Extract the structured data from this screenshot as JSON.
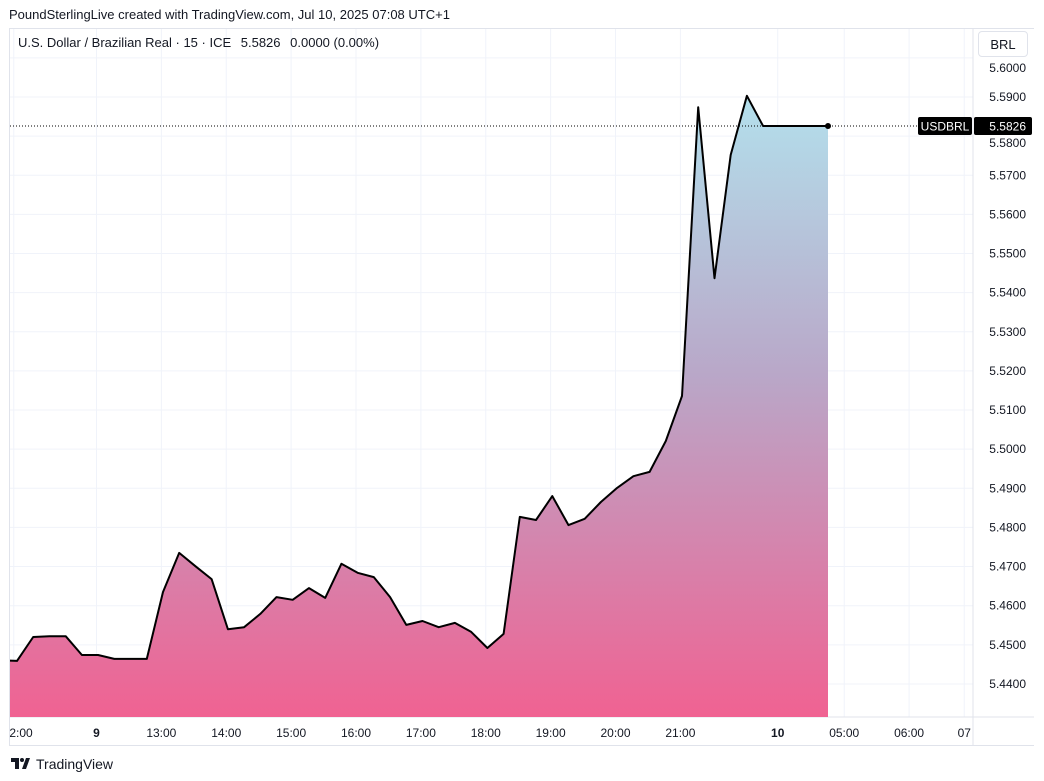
{
  "credit": "PoundSterlingLive created with TradingView.com, Jul 10, 2025 07:08 UTC+1",
  "legend": {
    "symbol": "U.S. Dollar / Brazilian Real · 15 · ICE",
    "price": "5.5826",
    "change": "0.0000 (0.00%)"
  },
  "currency_button": "BRL",
  "price_label": {
    "symbol": "USDBRL",
    "value": "5.5826"
  },
  "footer": {
    "brand": "TradingView",
    "icon": "tradingview-logo-icon"
  },
  "colors": {
    "line": "#000000",
    "fill_top": "#b3e0ec",
    "fill_bottom": "#f06292",
    "grid": "#f0f3fa"
  },
  "chart_data": {
    "type": "area",
    "title": "U.S. Dollar / Brazilian Real · 15 · ICE",
    "xlabel": "",
    "ylabel": "",
    "ylim": [
      5.434,
      5.5995
    ],
    "grid": true,
    "values": [
      5.4459,
      5.452,
      5.4522,
      5.4522,
      5.4474,
      5.4474,
      5.4464,
      5.4464,
      5.4464,
      5.4635,
      5.4735,
      5.4701,
      5.4668,
      5.454,
      5.4545,
      5.4579,
      5.4622,
      5.4615,
      5.4645,
      5.462,
      5.4707,
      5.4684,
      5.4673,
      5.4622,
      5.4551,
      5.4561,
      5.4545,
      5.4556,
      5.4533,
      5.4492,
      5.4528,
      5.4827,
      5.4819,
      5.488,
      5.4806,
      5.4822,
      5.4865,
      5.4901,
      5.4931,
      5.4942,
      5.5021,
      5.5136,
      5.5874,
      5.5437,
      5.5752,
      5.5903,
      5.5826,
      5.5826,
      5.5826,
      5.5826,
      5.5826
    ],
    "last_price": 5.5826,
    "y_ticks": [
      "5.4400",
      "5.4500",
      "5.4600",
      "5.4700",
      "5.4800",
      "5.4900",
      "5.5000",
      "5.5100",
      "5.5200",
      "5.5300",
      "5.5400",
      "5.5500",
      "5.5600",
      "5.5700",
      "5.5800",
      "5.5900",
      "5.6000"
    ],
    "x_ticks": [
      {
        "label": "2:00",
        "bar": -0.2,
        "bold": false
      },
      {
        "label": "9",
        "bar": 4.9,
        "bold": true
      },
      {
        "label": "13:00",
        "bar": 8.9,
        "bold": false
      },
      {
        "label": "14:00",
        "bar": 12.9,
        "bold": false
      },
      {
        "label": "15:00",
        "bar": 16.9,
        "bold": false
      },
      {
        "label": "16:00",
        "bar": 20.9,
        "bold": false
      },
      {
        "label": "17:00",
        "bar": 24.9,
        "bold": false
      },
      {
        "label": "18:00",
        "bar": 28.9,
        "bold": false
      },
      {
        "label": "19:00",
        "bar": 32.9,
        "bold": false
      },
      {
        "label": "20:00",
        "bar": 36.9,
        "bold": false
      },
      {
        "label": "21:00",
        "bar": 40.9,
        "bold": false
      },
      {
        "label": "10",
        "bar": 46.9,
        "bold": true
      },
      {
        "label": "05:00",
        "bar": 51,
        "bold": false
      },
      {
        "label": "06:00",
        "bar": 55,
        "bold": false
      },
      {
        "label": "07",
        "bar": 58.4,
        "bold": false
      }
    ]
  }
}
